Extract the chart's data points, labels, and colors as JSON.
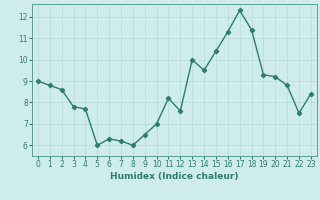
{
  "title": "",
  "xlabel": "Humidex (Indice chaleur)",
  "x": [
    0,
    1,
    2,
    3,
    4,
    5,
    6,
    7,
    8,
    9,
    10,
    11,
    12,
    13,
    14,
    15,
    16,
    17,
    18,
    19,
    20,
    21,
    22,
    23
  ],
  "y": [
    9.0,
    8.8,
    8.6,
    7.8,
    7.7,
    6.0,
    6.3,
    6.2,
    6.0,
    6.5,
    7.0,
    8.2,
    7.6,
    10.0,
    9.5,
    10.4,
    11.3,
    12.3,
    11.4,
    9.3,
    9.2,
    8.8,
    7.5,
    8.4
  ],
  "line_color": "#2e7d6e",
  "marker": "D",
  "marker_size": 2.2,
  "background_color": "#ceecea",
  "grid_color": "#b8dbd8",
  "ylim": [
    5.5,
    12.6
  ],
  "xlim": [
    -0.5,
    23.5
  ],
  "yticks": [
    6,
    7,
    8,
    9,
    10,
    11,
    12
  ],
  "xticks": [
    0,
    1,
    2,
    3,
    4,
    5,
    6,
    7,
    8,
    9,
    10,
    11,
    12,
    13,
    14,
    15,
    16,
    17,
    18,
    19,
    20,
    21,
    22,
    23
  ],
  "tick_fontsize": 5.5,
  "xlabel_fontsize": 6.5,
  "line_width": 1.0
}
